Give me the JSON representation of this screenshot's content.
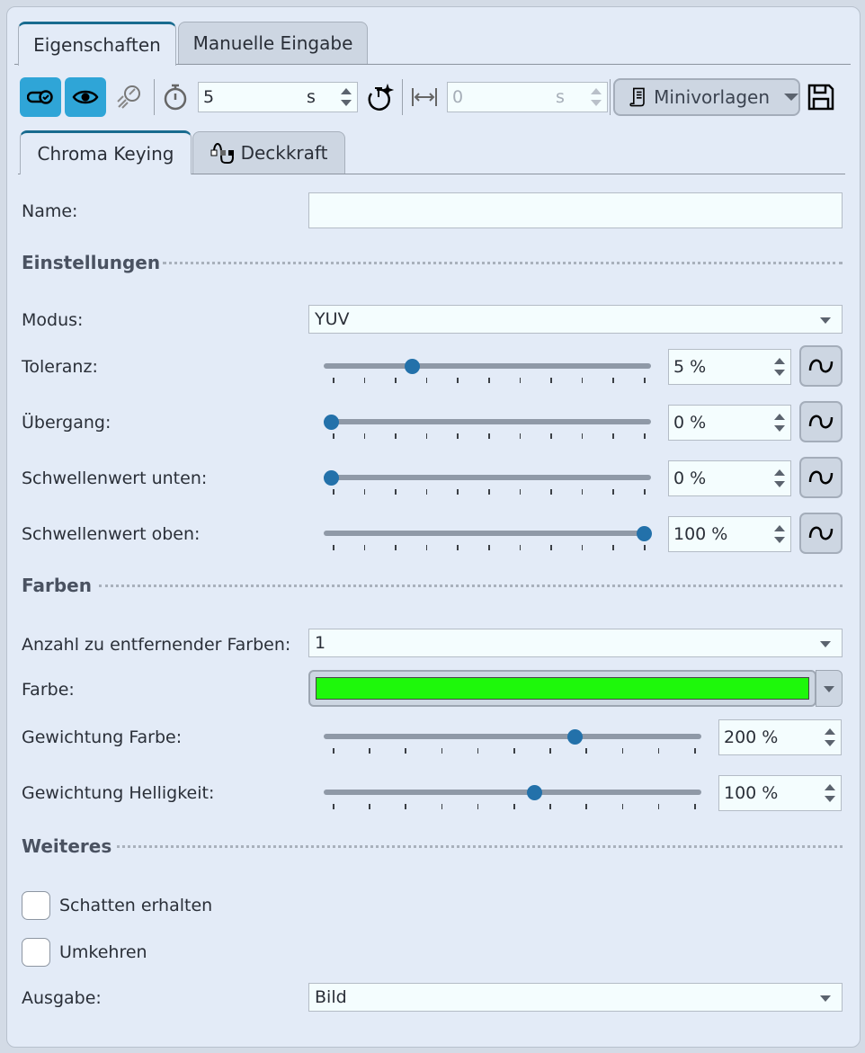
{
  "tabs": [
    {
      "label": "Eigenschaften",
      "active": true
    },
    {
      "label": "Manuelle Eingabe",
      "active": false
    }
  ],
  "toolbar": {
    "duration_value": "5",
    "duration_unit": "s",
    "offset_value": "0",
    "offset_unit": "s",
    "templates_label": "Minivorlagen"
  },
  "subtabs": [
    {
      "label": "Chroma Keying",
      "active": true
    },
    {
      "label": "Deckkraft",
      "active": false
    }
  ],
  "name": {
    "label": "Name:",
    "value": ""
  },
  "sections": {
    "settings": "Einstellungen",
    "colors": "Farben",
    "more": "Weiteres"
  },
  "modus": {
    "label": "Modus:",
    "value": "YUV"
  },
  "sliders": [
    {
      "label": "Toleranz:",
      "value": "5 %",
      "position": 0.26
    },
    {
      "label": "Übergang:",
      "value": "0 %",
      "position": 0
    },
    {
      "label": "Schwellenwert unten:",
      "value": "0 %",
      "position": 0
    },
    {
      "label": "Schwellenwert oben:",
      "value": "100 %",
      "position": 1
    }
  ],
  "count": {
    "label": "Anzahl zu entfernender Farben:",
    "value": "1"
  },
  "color": {
    "label": "Farbe:",
    "value": "#1ef80b"
  },
  "weights": [
    {
      "label": "Gewichtung Farbe:",
      "value": "200 %",
      "position": 0.67
    },
    {
      "label": "Gewichtung Helligkeit:",
      "value": "100 %",
      "position": 0.56
    }
  ],
  "checkboxes": [
    {
      "label": "Schatten erhalten",
      "checked": false
    },
    {
      "label": "Umkehren",
      "checked": false
    }
  ],
  "output": {
    "label": "Ausgabe:",
    "value": "Bild"
  },
  "colors": {
    "accent": "#2fa5d7",
    "thumb": "#2371aa",
    "tab_indicator": "#186b8f"
  }
}
